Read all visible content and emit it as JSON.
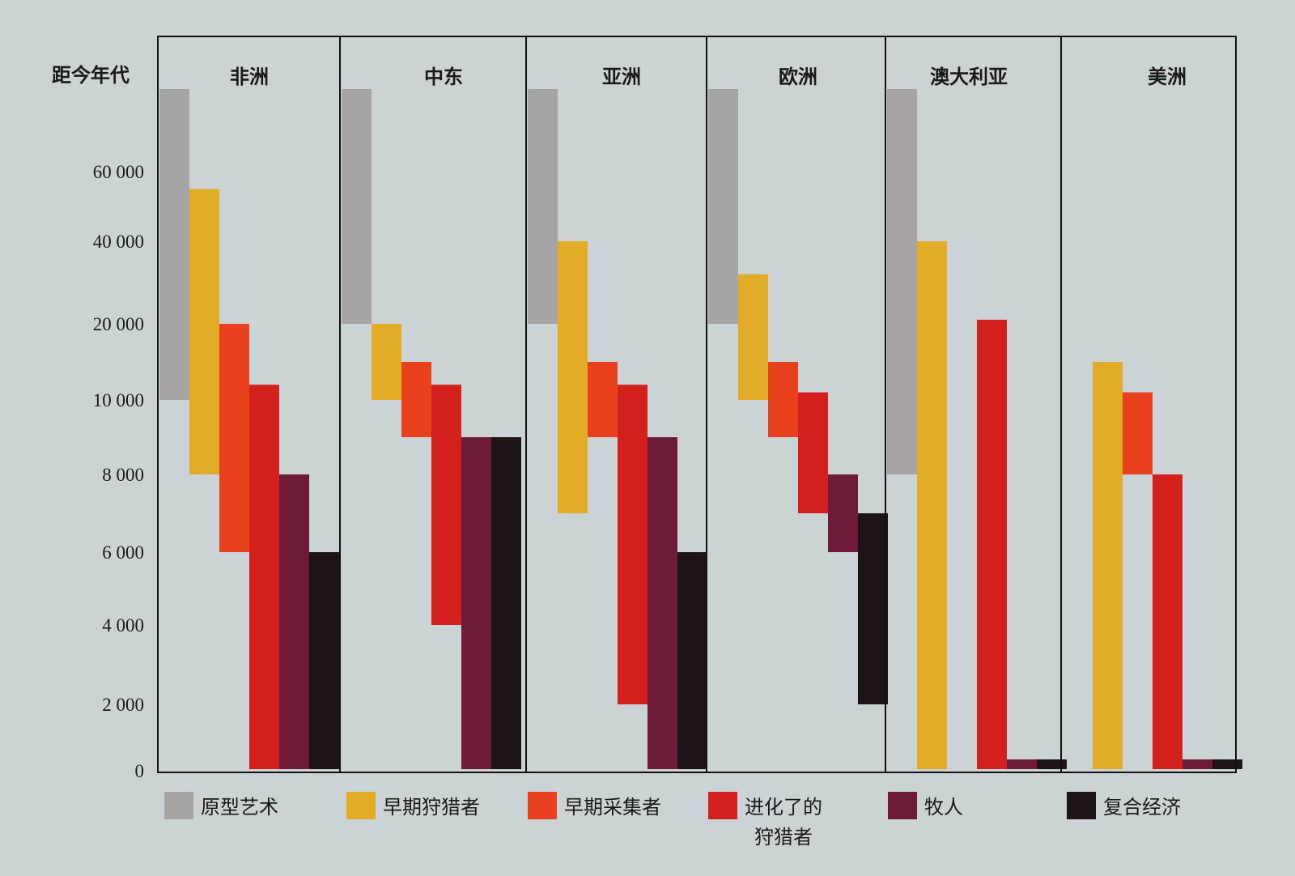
{
  "chart_data": {
    "type": "bar",
    "title": "",
    "ylabel": "距今年代",
    "y_ticks": [
      "60 000",
      "40 000",
      "20 000",
      "10 000",
      "8 000",
      "6 000",
      "4 000",
      "2 000",
      "0"
    ],
    "y_tick_values": [
      60000,
      40000,
      20000,
      10000,
      8000,
      6000,
      4000,
      2000,
      0
    ],
    "y_scale": "non-linear (piecewise between tick labels)",
    "grid": false,
    "legend_position": "bottom",
    "regions": [
      "非洲",
      "中东",
      "亚洲",
      "欧洲",
      "澳大利亚",
      "美洲"
    ],
    "series": [
      {
        "name": "原型艺术",
        "color": "#a6a4a4",
        "ranges": [
          [
            90000,
            10000
          ],
          [
            90000,
            20000
          ],
          [
            90000,
            20000
          ],
          [
            90000,
            20000
          ],
          [
            90000,
            8000
          ],
          null
        ]
      },
      {
        "name": "早期狩猎者",
        "color": "#e2ac27",
        "ranges": [
          [
            55000,
            8000
          ],
          [
            20000,
            10000
          ],
          [
            40000,
            7000
          ],
          [
            32000,
            10000
          ],
          [
            40000,
            0
          ],
          [
            15000,
            0
          ]
        ]
      },
      {
        "name": "早期采集者",
        "color": "#e9411e",
        "ranges": [
          [
            20000,
            6000
          ],
          [
            15000,
            9000
          ],
          [
            15000,
            9000
          ],
          [
            15000,
            9000
          ],
          null,
          [
            11000,
            8000
          ]
        ]
      },
      {
        "name": "进化了的狩猎者",
        "color": "#d3201c",
        "ranges": [
          [
            12000,
            0
          ],
          [
            12000,
            4000
          ],
          [
            12000,
            2000
          ],
          [
            11000,
            7000
          ],
          [
            21000,
            0
          ],
          [
            8000,
            0
          ]
        ]
      },
      {
        "name": "牧人",
        "color": "#6e1a3a",
        "ranges": [
          [
            8000,
            0
          ],
          [
            9000,
            0
          ],
          [
            9000,
            0
          ],
          [
            8000,
            6000
          ],
          [
            300,
            0
          ],
          [
            300,
            0
          ]
        ]
      },
      {
        "name": "复合经济",
        "color": "#1c1416",
        "ranges": [
          [
            6000,
            0
          ],
          [
            9000,
            0
          ],
          [
            6000,
            0
          ],
          [
            7000,
            2000
          ],
          [
            300,
            0
          ],
          [
            300,
            0
          ]
        ]
      }
    ],
    "legend_labels": [
      "原型艺术",
      "早期狩猎者",
      "早期采集者",
      "进化了的",
      "牧人",
      "复合经济"
    ],
    "legend_label_line2": [
      "",
      "",
      "",
      "狩猎者",
      "",
      ""
    ]
  }
}
